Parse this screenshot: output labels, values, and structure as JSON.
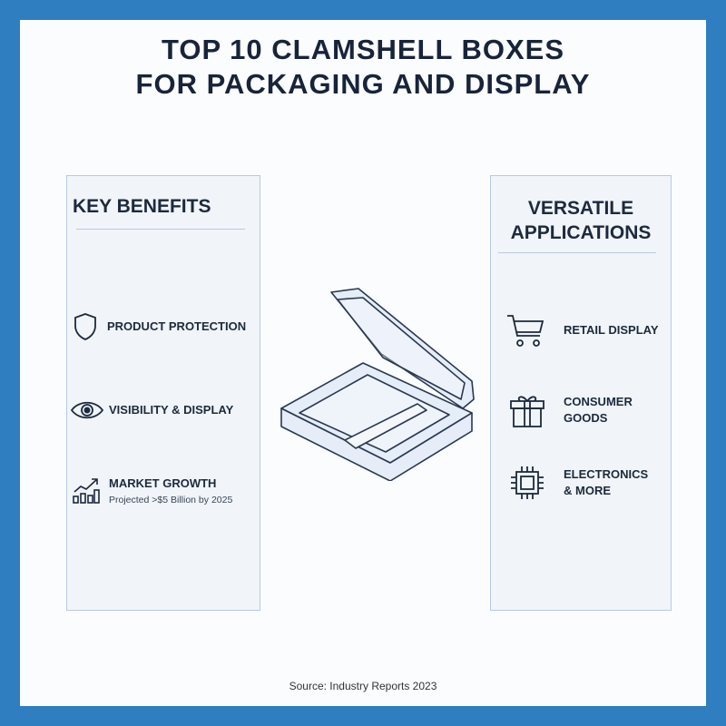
{
  "title": {
    "line1": "TOP 10 CLAMSHELL BOXES",
    "line2": "FOR PACKAGING AND DISPLAY"
  },
  "benefits": {
    "heading": "KEY BENEFITS",
    "items": [
      {
        "icon": "shield-icon",
        "label": "PRODUCT PROTECTION"
      },
      {
        "icon": "eye-icon",
        "label": "VISIBILITY & DISPLAY"
      },
      {
        "icon": "growth-chart-icon",
        "label": "MARKET GROWTH",
        "sub": "Projected >$5 Billion by 2025"
      }
    ]
  },
  "applications": {
    "heading_line1": "VERSATILE",
    "heading_line2": "APPLICATIONS",
    "items": [
      {
        "icon": "shopping-cart-icon",
        "line1": "RETAIL DISPLAY"
      },
      {
        "icon": "gift-icon",
        "line1": "CONSUMER",
        "line2": "GOODS"
      },
      {
        "icon": "chip-icon",
        "line1": "ELECTRONICS",
        "line2": "& MORE"
      }
    ]
  },
  "source": "Source: Industry Reports 2023",
  "colors": {
    "frame": "#2f7ec0",
    "panel": "#f1f4f9",
    "text": "#1c2a3d"
  }
}
